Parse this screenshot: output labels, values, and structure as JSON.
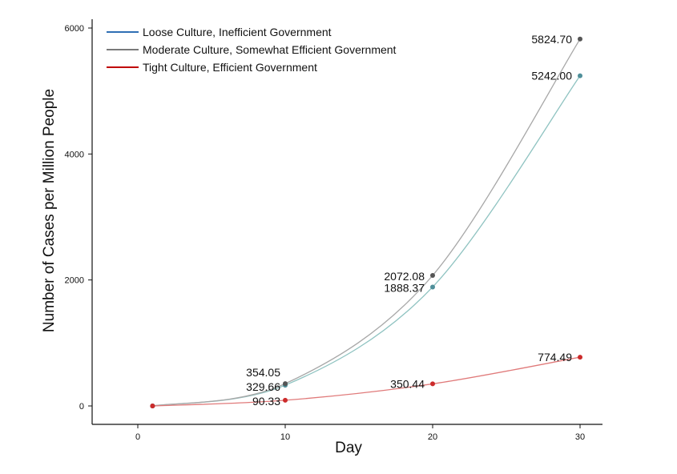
{
  "chart_data": {
    "type": "line",
    "title": "",
    "xlabel": "Day",
    "ylabel": "Number of Cases per Million People",
    "xlim": [
      -3,
      32
    ],
    "ylim": [
      -300,
      6200
    ],
    "xticks": [
      0,
      10,
      20,
      30
    ],
    "yticks": [
      0,
      2000,
      4000,
      6000
    ],
    "grid": false,
    "legend_position": "top-left",
    "series": [
      {
        "name": "Loose Culture, Inefficient Government",
        "legend_color": "#2f6fb4",
        "line_color": "#8fc3c1",
        "point_color": "#4f8f9a",
        "points": [
          {
            "x": 1,
            "y": 0,
            "label": ""
          },
          {
            "x": 10,
            "y": 329.66,
            "label": "329.66"
          },
          {
            "x": 20,
            "y": 1888.37,
            "label": "1888.37"
          },
          {
            "x": 30,
            "y": 5242.0,
            "label": "5242.00"
          }
        ]
      },
      {
        "name": "Moderate Culture, Somewhat Efficient Government",
        "legend_color": "#7a7a7a",
        "line_color": "#a7a7a7",
        "point_color": "#555555",
        "points": [
          {
            "x": 1,
            "y": 0,
            "label": ""
          },
          {
            "x": 10,
            "y": 354.05,
            "label": "354.05"
          },
          {
            "x": 20,
            "y": 2072.08,
            "label": "2072.08"
          },
          {
            "x": 30,
            "y": 5824.7,
            "label": "5824.70"
          }
        ]
      },
      {
        "name": "Tight Culture, Efficient Government",
        "legend_color": "#c00000",
        "line_color": "#e07a7a",
        "point_color": "#cc2b2b",
        "points": [
          {
            "x": 1,
            "y": 0,
            "label": ""
          },
          {
            "x": 10,
            "y": 90.33,
            "label": "90.33"
          },
          {
            "x": 20,
            "y": 350.44,
            "label": "350.44"
          },
          {
            "x": 30,
            "y": 774.49,
            "label": "774.49"
          }
        ]
      }
    ]
  }
}
